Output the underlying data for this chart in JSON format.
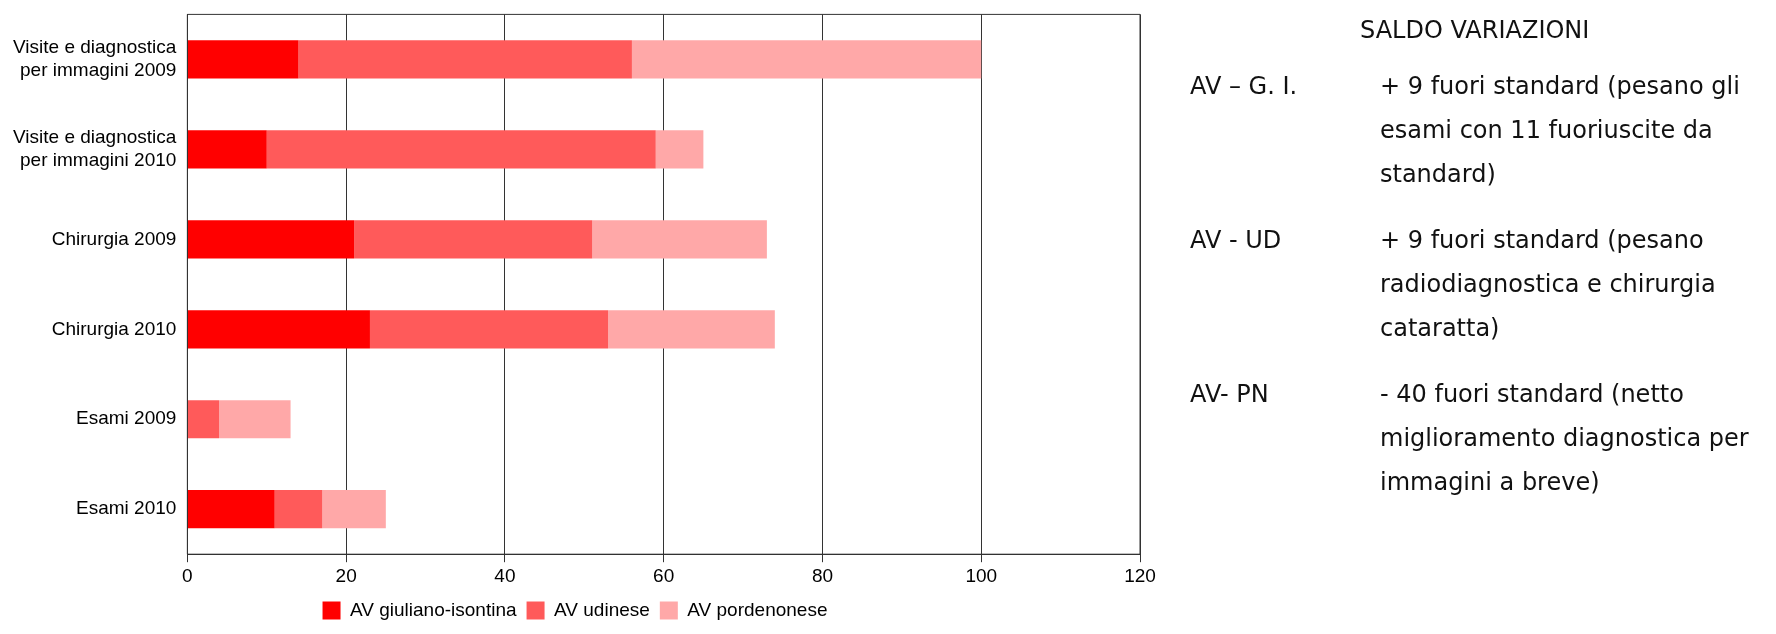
{
  "chart_data": {
    "type": "bar",
    "orientation": "horizontal",
    "stacked": true,
    "categories": [
      "Visite e diagnostica per immagini 2009",
      "Visite e diagnostica per immagini 2010",
      "Chirurgia 2009",
      "Chirurgia 2010",
      "Esami 2009",
      "Esami 2010"
    ],
    "series": [
      {
        "name": "AV giuliano-isontina",
        "color": "#ff0000",
        "values": [
          14,
          10,
          21,
          23,
          0,
          11
        ]
      },
      {
        "name": "AV udinese",
        "color": "#ff5a5a",
        "values": [
          42,
          49,
          30,
          30,
          4,
          6
        ]
      },
      {
        "name": "AV pordenonese",
        "color": "#ffa8a8",
        "values": [
          44,
          6,
          22,
          21,
          9,
          8
        ]
      }
    ],
    "xlim": [
      0,
      120
    ],
    "xticks": [
      0,
      20,
      40,
      60,
      80,
      100,
      120
    ],
    "grid": "x",
    "legend": "bottom",
    "annotations": [
      "SALDO VARIAZIONI",
      "AV – G. I.",
      "+ 9 fuori standard (pesano gli esami con 11 fuoriuscite da standard)",
      "AV - UD",
      "+ 9 fuori standard (pesano radiodiagnostica e chirurgia cataratta)",
      "AV- PN",
      "- 40 fuori standard (netto miglioramento diagnostica per immagini a breve)"
    ]
  }
}
